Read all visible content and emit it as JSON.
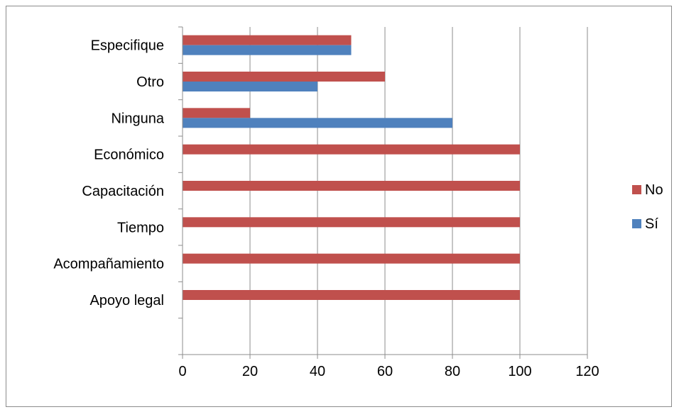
{
  "chart_data": {
    "type": "bar",
    "orientation": "horizontal",
    "categories": [
      "Apoyo legal",
      "Acompañamiento",
      "Tiempo",
      "Capacitación",
      "Económico",
      "Ninguna",
      "Otro",
      "Especifique"
    ],
    "series": [
      {
        "name": "Sí",
        "color": "#4f81bd",
        "values": [
          0,
          0,
          0,
          0,
          0,
          80,
          40,
          50
        ]
      },
      {
        "name": "No",
        "color": "#c0504d",
        "values": [
          100,
          100,
          100,
          100,
          100,
          20,
          60,
          50
        ]
      }
    ],
    "xlim": [
      0,
      120
    ],
    "x_ticks": [
      "0",
      "20",
      "40",
      "60",
      "80",
      "100",
      "120"
    ],
    "grid": "vertical",
    "legend_position": "right",
    "legend_order": [
      "No",
      "Sí"
    ]
  }
}
